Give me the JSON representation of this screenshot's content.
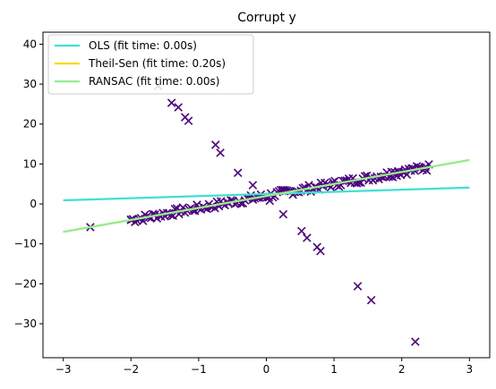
{
  "chart_data": {
    "type": "scatter",
    "title": "Corrupt y",
    "xlabel": "",
    "ylabel": "",
    "xlim": [
      -3.3,
      3.3
    ],
    "ylim": [
      -38.5,
      43.0
    ],
    "xticks": [
      -3,
      -2,
      -1,
      0,
      1,
      2,
      3
    ],
    "yticks": [
      -30,
      -20,
      -10,
      0,
      10,
      20,
      30,
      40
    ],
    "grid": false,
    "legend_position": "top-left",
    "marker_color": "#4b0082",
    "series": [
      {
        "name": "OLS (fit time: 0.00s)",
        "type": "line",
        "color": "#40e0d0",
        "x": [
          -3,
          3
        ],
        "y": [
          0.9,
          4.1
        ]
      },
      {
        "name": "Theil-Sen (fit time: 0.20s)",
        "type": "line",
        "color": "#ffd700",
        "x": [
          -3,
          3
        ],
        "y": [
          -7.0,
          11.0
        ]
      },
      {
        "name": "RANSAC (fit time: 0.00s)",
        "type": "line",
        "color": "#90ee90",
        "x": [
          -3,
          3
        ],
        "y": [
          -7.0,
          11.0
        ]
      }
    ],
    "outliers": {
      "x": [
        -2.6,
        -2.2,
        -1.6,
        -1.4,
        -1.3,
        -1.2,
        -1.15,
        -0.75,
        -0.68,
        -0.42,
        -0.2,
        0.05,
        0.25,
        0.52,
        0.6,
        0.75,
        0.8,
        1.35,
        1.55,
        2.2
      ],
      "y": [
        -5.8,
        39.5,
        29.5,
        25.3,
        24.2,
        21.7,
        20.8,
        14.8,
        12.8,
        7.8,
        4.7,
        0.8,
        -2.6,
        -6.8,
        -8.5,
        -10.8,
        -11.8,
        -20.6,
        -24.1,
        -34.5
      ]
    },
    "inliers": {
      "slope": 3.0,
      "intercept": 2.0,
      "x_range": [
        -2.0,
        2.4
      ],
      "count": 150,
      "extra_x": [
        -2.0,
        1.85,
        1.95,
        2.05,
        2.15,
        2.25,
        2.35
      ],
      "extra_y": [
        -3.9,
        8.0,
        8.2,
        8.6,
        8.9,
        9.1,
        9.3
      ]
    }
  }
}
